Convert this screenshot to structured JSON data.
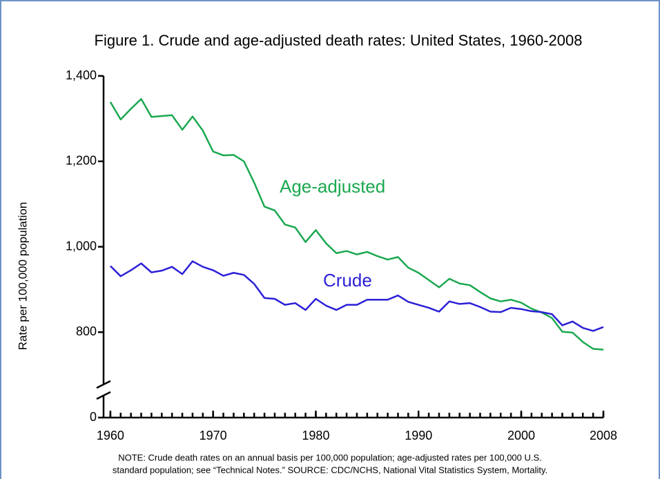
{
  "chart_data": {
    "type": "line",
    "title": "Figure 1. Crude and age-adjusted death rates: United States, 1960-2008",
    "y_label": "Rate per 100,000 population",
    "note": [
      "NOTE: Crude death rates on an annual basis per 100,000 population; age-adjusted rates per 100,000 U.S.",
      "standard population; see “Technical Notes.”  SOURCE: CDC/NCHS, National Vital Statistics System, Mortality."
    ],
    "x": [
      1960,
      1961,
      1962,
      1963,
      1964,
      1965,
      1966,
      1967,
      1968,
      1969,
      1970,
      1971,
      1972,
      1973,
      1974,
      1975,
      1976,
      1977,
      1978,
      1979,
      1980,
      1981,
      1982,
      1983,
      1984,
      1985,
      1986,
      1987,
      1988,
      1989,
      1990,
      1991,
      1992,
      1993,
      1994,
      1995,
      1996,
      1997,
      1998,
      1999,
      2000,
      2001,
      2002,
      2003,
      2004,
      2005,
      2006,
      2007,
      2008
    ],
    "series": [
      {
        "name": "Age-adjusted",
        "color": "#1aa84f",
        "values": [
          1339,
          1298,
          1323,
          1346,
          1304,
          1306,
          1308,
          1274,
          1305,
          1272,
          1223,
          1214,
          1215,
          1200,
          1150,
          1094,
          1085,
          1052,
          1045,
          1011,
          1039,
          1008,
          985,
          990,
          982,
          988,
          978,
          970,
          976,
          951,
          939,
          922,
          905,
          925,
          914,
          910,
          894,
          879,
          872,
          876,
          869,
          855,
          846,
          833,
          801,
          799,
          777,
          761,
          759
        ]
      },
      {
        "name": "Crude",
        "color": "#2b1fd6",
        "values": [
          955,
          931,
          945,
          961,
          940,
          944,
          953,
          936,
          966,
          953,
          945,
          932,
          939,
          934,
          913,
          880,
          878,
          864,
          868,
          852,
          878,
          862,
          852,
          864,
          864,
          876,
          876,
          876,
          886,
          871,
          864,
          857,
          848,
          872,
          866,
          868,
          859,
          848,
          847,
          857,
          854,
          849,
          847,
          842,
          816,
          825,
          810,
          803,
          812
        ]
      }
    ],
    "xlim": [
      1959.2,
      2008
    ],
    "xticks": [
      1960,
      1970,
      1980,
      1990,
      2000,
      2008
    ],
    "ylim": [
      0,
      1400
    ],
    "axis_break": [
      0,
      600
    ],
    "yticks": [
      0,
      800,
      {
        "value": 1000,
        "label": "1,000"
      },
      {
        "value": 1200,
        "label": "1,200"
      },
      {
        "value": 1400,
        "label": "1,400"
      }
    ],
    "grid": false
  }
}
